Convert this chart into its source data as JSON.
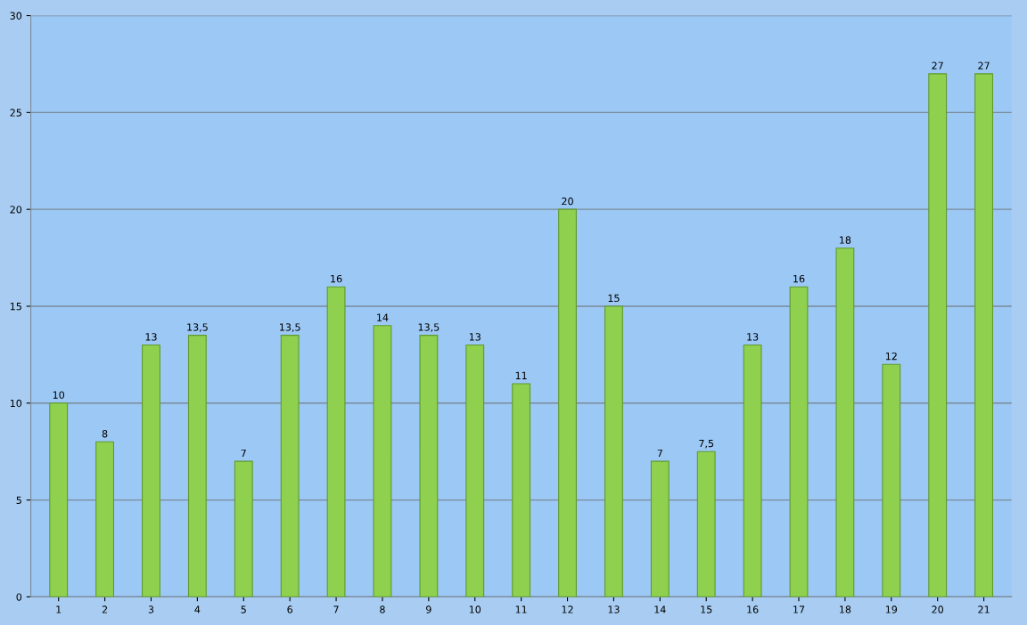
{
  "chart_data": {
    "type": "bar",
    "categories": [
      "1",
      "2",
      "3",
      "4",
      "5",
      "6",
      "7",
      "8",
      "9",
      "10",
      "11",
      "12",
      "13",
      "14",
      "15",
      "16",
      "17",
      "18",
      "19",
      "20",
      "21"
    ],
    "values": [
      10,
      8,
      13,
      13.5,
      7,
      13.5,
      16,
      14,
      13.5,
      13,
      11,
      20,
      15,
      7,
      7.5,
      13,
      16,
      18,
      12,
      27,
      27
    ],
    "value_labels": [
      "10",
      "8",
      "13",
      "13,5",
      "7",
      "13,5",
      "16",
      "14",
      "13,5",
      "13",
      "11",
      "20",
      "15",
      "7",
      "7,5",
      "13",
      "16",
      "18",
      "12",
      "27",
      "27"
    ],
    "color": "#8fd14f",
    "ylim": [
      0,
      30
    ],
    "yticks": [
      0,
      5,
      10,
      15,
      20,
      25,
      30
    ],
    "grid": "y"
  }
}
